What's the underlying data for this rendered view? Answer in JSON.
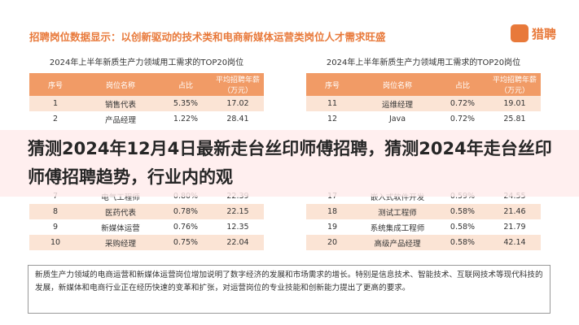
{
  "header": {
    "title": "招聘岗位数据显示：以创新驱动的技术类和电商新媒体运营类岗位人才需求旺盛",
    "logo": "猎聘"
  },
  "tables": [
    {
      "title": "2024年上半年新质生产力领域用工需求的TOP20岗位",
      "columns": [
        "序号",
        "岗位名称",
        "占比",
        "平均招聘年薪（万元）"
      ],
      "rows": [
        [
          "1",
          "销售代表",
          "5.35%",
          "17.02"
        ],
        [
          "2",
          "产品经理",
          "1.22%",
          "28.41"
        ],
        [
          "7",
          "电气工程师",
          "0.80%",
          "22.39"
        ],
        [
          "8",
          "医药代表",
          "0.78%",
          "22.15"
        ],
        [
          "9",
          "新媒体运营",
          "0.76%",
          "12.35"
        ],
        [
          "10",
          "采购经理",
          "0.75%",
          "22.04"
        ]
      ]
    },
    {
      "title": "2024年上半年新质生产力领域用工需求的TOP20岗位",
      "columns": [
        "序号",
        "岗位名称",
        "占比",
        "平均招聘年薪（万元）"
      ],
      "rows": [
        [
          "11",
          "运维经理",
          "0.72%",
          "19.01"
        ],
        [
          "12",
          "Java",
          "0.72%",
          "25.81"
        ],
        [
          "17",
          "嵌入式软件开发",
          "0.59%",
          "24.55"
        ],
        [
          "18",
          "测试工程师",
          "0.58%",
          "21.46"
        ],
        [
          "19",
          "系统集成工程师",
          "0.58%",
          "21.79"
        ],
        [
          "20",
          "高级产品经理",
          "0.58%",
          "42.14"
        ]
      ]
    }
  ],
  "banner": "猜测2024年12月4日最新走台丝印师傅招聘，猜测2024年走台丝印师傅招聘趋势，行业内的观",
  "note": "新质生产力领域的电商运营和新媒体运营岗位增加说明了数字经济的发展和市场需求的增长。特别是信息技术、智能技术、互联网技术等现代科技的发展，新媒体和电商行业正在经历快速的变革和扩张，对运营岗位的专业技能和创新能力提出了更高的要求。"
}
